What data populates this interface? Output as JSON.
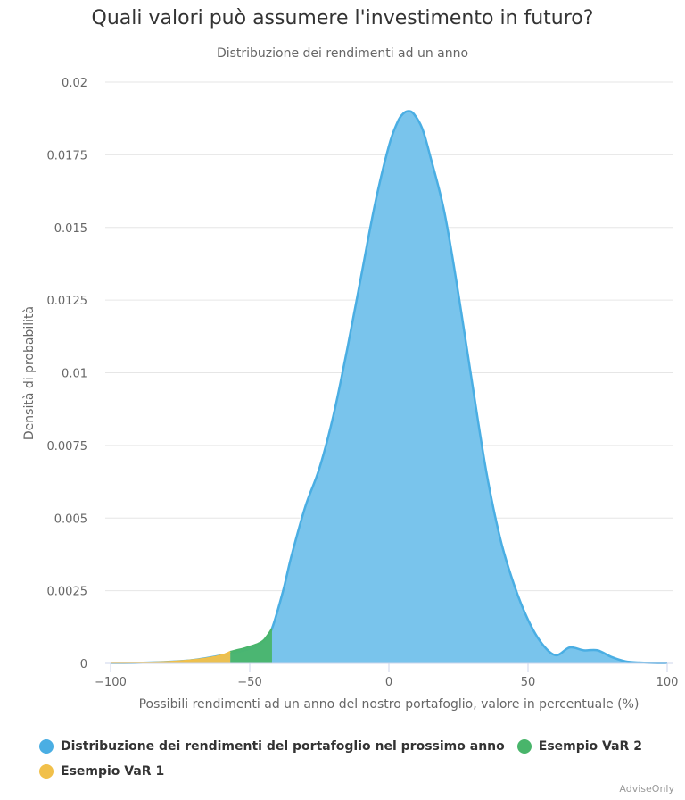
{
  "chart_data": {
    "type": "area",
    "title": "Quali valori può assumere l'investimento in futuro?",
    "subtitle": "Distribuzione dei rendimenti ad un anno",
    "xlabel": "Possibili rendimenti ad un anno del nostro portafoglio, valore in percentuale (%)",
    "ylabel": "Densità di probabilità",
    "xlim": [
      -100,
      100
    ],
    "ylim": [
      0,
      0.02
    ],
    "x_ticks": [
      -100,
      -50,
      0,
      50,
      100
    ],
    "x_tick_labels": [
      "−100",
      "−50",
      "0",
      "50",
      "100"
    ],
    "y_ticks": [
      0,
      0.0025,
      0.005,
      0.0075,
      0.01,
      0.0125,
      0.015,
      0.0175,
      0.02
    ],
    "y_tick_labels": [
      "0",
      "0.0025",
      "0.005",
      "0.0075",
      "0.01",
      "0.0125",
      "0.015",
      "0.0175",
      "0.02"
    ],
    "grid": true,
    "legend_position": "bottom-left",
    "colors": {
      "distribution": "#4aaee3",
      "distribution_fill": "#79c4ec",
      "var2": "#49b56b",
      "var1": "#f1c04a"
    },
    "series": [
      {
        "name": "Distribuzione dei rendimenti del portafoglio nel prossimo anno",
        "key": "distribution",
        "x": [
          -100,
          -90,
          -80,
          -70,
          -60,
          -50,
          -45,
          -42,
          -38,
          -35,
          -30,
          -25,
          -20,
          -15,
          -10,
          -5,
          0,
          3,
          5,
          7,
          9,
          12,
          15,
          20,
          25,
          30,
          35,
          40,
          45,
          50,
          55,
          60,
          65,
          70,
          75,
          80,
          85,
          90,
          95,
          100
        ],
        "y": [
          1e-05,
          2e-05,
          5e-05,
          0.00012,
          0.00028,
          0.0005,
          0.00075,
          0.0012,
          0.0025,
          0.0037,
          0.0054,
          0.0067,
          0.0085,
          0.0108,
          0.0133,
          0.0158,
          0.0178,
          0.0186,
          0.0189,
          0.019,
          0.0189,
          0.0184,
          0.0174,
          0.0155,
          0.0127,
          0.0096,
          0.0066,
          0.0043,
          0.0027,
          0.0015,
          0.00068,
          0.00028,
          0.00055,
          0.00045,
          0.00045,
          0.00022,
          7e-05,
          3e-05,
          1e-05,
          1e-05
        ]
      },
      {
        "name": "Esempio VaR 2",
        "key": "var2",
        "x": [
          -57,
          -55,
          -52,
          -50,
          -47,
          -45,
          -43,
          -42
        ],
        "y": [
          0.0004,
          0.00045,
          0.00052,
          0.00058,
          0.00068,
          0.0008,
          0.00105,
          0.0012
        ]
      },
      {
        "name": "Esempio VaR 1",
        "key": "var1",
        "x": [
          -100,
          -90,
          -80,
          -70,
          -65,
          -60,
          -57
        ],
        "y": [
          1e-05,
          2e-05,
          5e-05,
          0.00012,
          0.00018,
          0.00028,
          0.0004
        ]
      }
    ],
    "legend": [
      "Distribuzione dei rendimenti del portafoglio nel prossimo anno",
      "Esempio VaR 2",
      "Esempio VaR 1"
    ],
    "credit": "AdviseOnly"
  }
}
